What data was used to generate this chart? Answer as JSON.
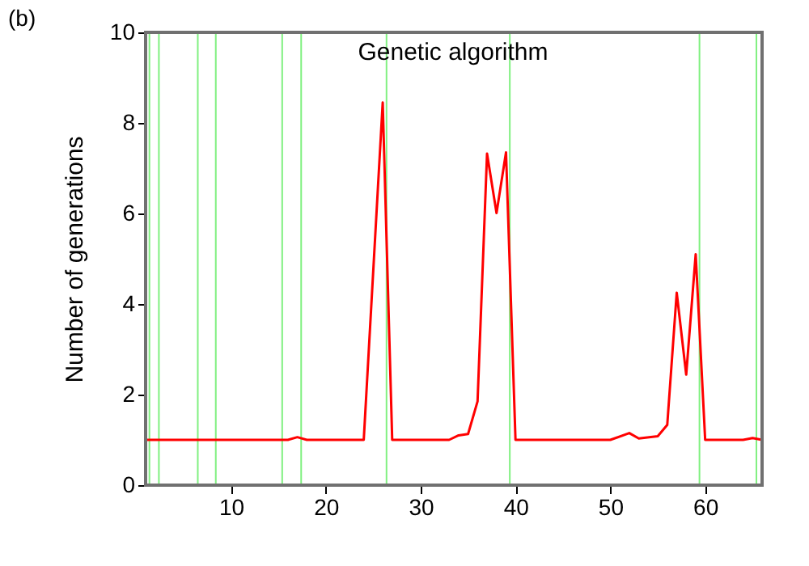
{
  "chart_data": {
    "type": "line",
    "ylabel": "Number of generations",
    "annotations": [
      "(b)",
      "Genetic algorithm"
    ],
    "x": [
      1,
      16,
      17,
      18,
      24,
      26,
      27,
      33,
      34,
      35,
      36,
      37,
      38,
      39,
      40,
      50,
      52,
      53,
      55,
      56,
      57,
      58,
      59,
      60,
      64,
      65,
      66
    ],
    "series": [
      {
        "color": "#ff0000",
        "values": [
          1,
          1,
          1.06,
          1,
          1,
          8.45,
          1,
          1,
          1.1,
          1.13,
          1.85,
          7.32,
          6.01,
          7.35,
          1,
          1,
          1.15,
          1.03,
          1.08,
          1.33,
          4.25,
          2.44,
          5.1,
          1,
          1,
          1.04,
          1
        ]
      }
    ],
    "xlim": [
      1,
      66
    ],
    "xticks": [
      10,
      20,
      30,
      40,
      50,
      60
    ],
    "ylim": [
      0,
      10
    ],
    "yticks": [
      0,
      2,
      4,
      6,
      8,
      10
    ],
    "grid": false,
    "marker": "none",
    "line_style": "solid",
    "ref_lines": [
      {
        "axis": "x",
        "value": 1.4,
        "color": "#80f080"
      },
      {
        "axis": "x",
        "value": 2.4,
        "color": "#80f080"
      },
      {
        "axis": "x",
        "value": 6.5,
        "color": "#80f080"
      },
      {
        "axis": "x",
        "value": 8.4,
        "color": "#80f080"
      },
      {
        "axis": "x",
        "value": 15.4,
        "color": "#80f080"
      },
      {
        "axis": "x",
        "value": 17.4,
        "color": "#80f080"
      },
      {
        "axis": "x",
        "value": 26.4,
        "color": "#80f080"
      },
      {
        "axis": "x",
        "value": 39.4,
        "color": "#80f080"
      },
      {
        "axis": "x",
        "value": 59.4,
        "color": "#80f080"
      },
      {
        "axis": "x",
        "value": 65.4,
        "color": "#80f080"
      }
    ]
  }
}
